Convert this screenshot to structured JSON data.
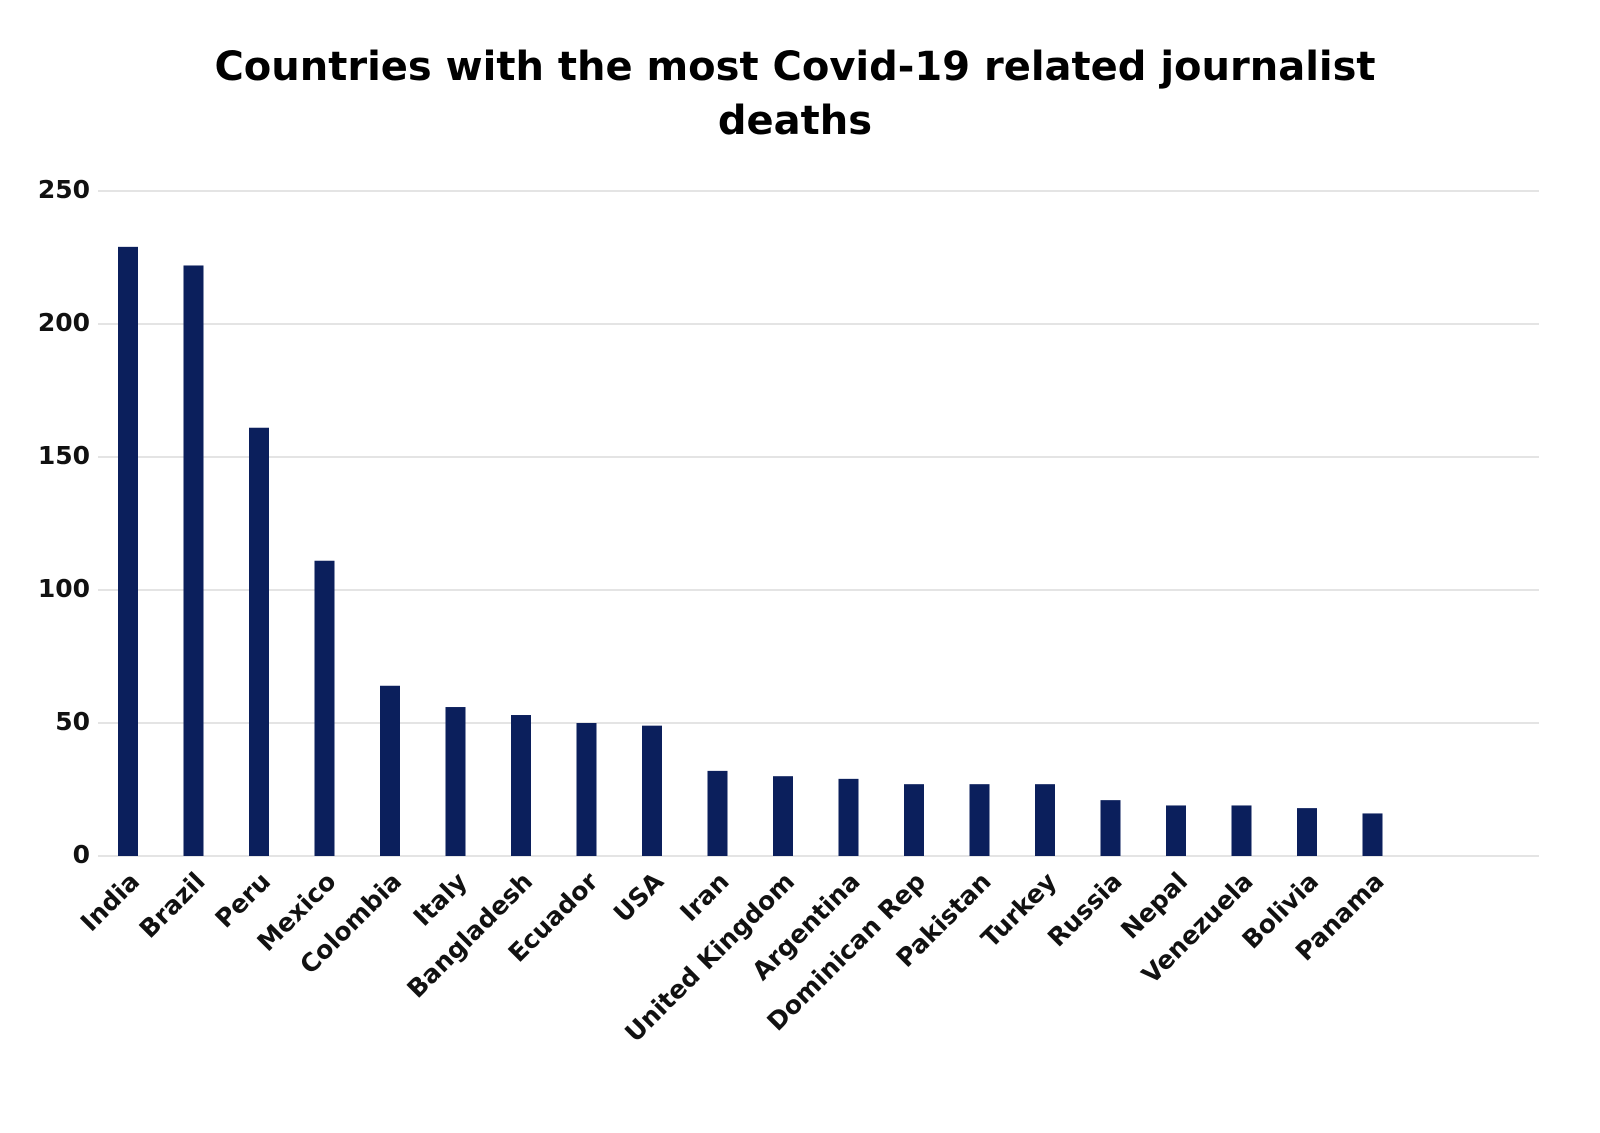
{
  "chart_data": {
    "type": "bar",
    "title": "Countries with the most Covid-19 related journalist deaths",
    "categories": [
      "India",
      "Brazil",
      "Peru",
      "Mexico",
      "Colombia",
      "Italy",
      "Bangladesh",
      "Ecuador",
      "USA",
      "Iran",
      "United Kingdom",
      "Argentina",
      "Dominican Rep",
      "Pakistan",
      "Turkey",
      "Russia",
      "Nepal",
      "Venezuela",
      "Bolivia",
      "Panama"
    ],
    "values": [
      229,
      222,
      161,
      111,
      64,
      56,
      53,
      50,
      49,
      32,
      30,
      29,
      27,
      27,
      27,
      21,
      19,
      19,
      18,
      16
    ],
    "color": "#0b1f5c",
    "ylim": [
      0,
      250
    ],
    "yticks": [
      0,
      50,
      100,
      150,
      200,
      250
    ],
    "grid": true
  }
}
